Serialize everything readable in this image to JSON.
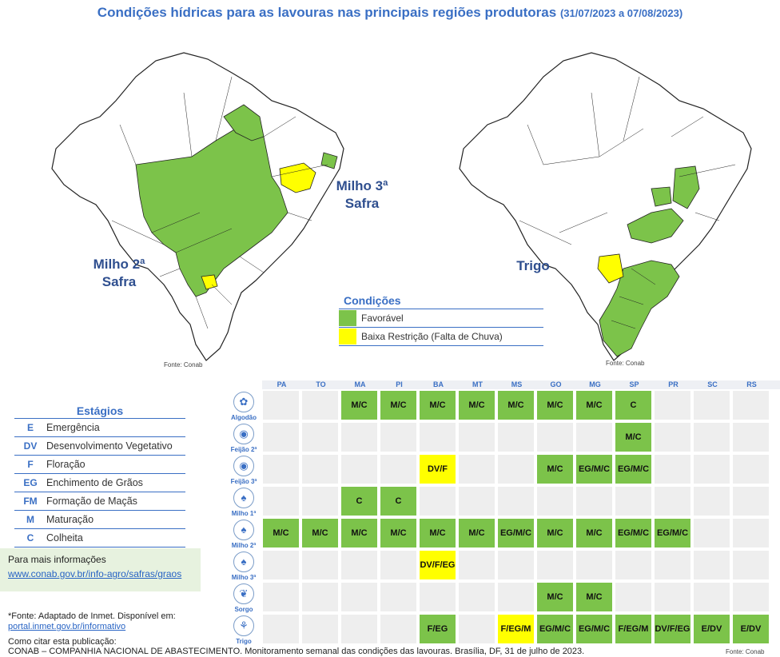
{
  "title": {
    "main": "Condições hídricas para as lavouras nas principais regiões produtoras",
    "period": "(31/07/2023 a 07/08/2023)"
  },
  "maps": {
    "left": {
      "label_line1": "Milho 2ª",
      "label_line2": "Safra",
      "source": "Fonte: Conab",
      "callout_line1": "Milho 3ª",
      "callout_line2": "Safra"
    },
    "right": {
      "label": "Trigo",
      "source": "Fonte: Conab"
    }
  },
  "conditions": {
    "title": "Condições",
    "items": [
      {
        "label": "Favorável",
        "color": "#7cc34a"
      },
      {
        "label": "Baixa Restrição (Falta de Chuva)",
        "color": "#ffff00"
      }
    ]
  },
  "stages": {
    "title": "Estágios",
    "items": [
      {
        "code": "E",
        "name": "Emergência"
      },
      {
        "code": "DV",
        "name": "Desenvolvimento Vegetativo"
      },
      {
        "code": "F",
        "name": "Floração"
      },
      {
        "code": "EG",
        "name": "Enchimento de Grãos"
      },
      {
        "code": "FM",
        "name": "Formação de Maçãs"
      },
      {
        "code": "M",
        "name": "Maturação"
      },
      {
        "code": "C",
        "name": "Colheita"
      }
    ]
  },
  "info": {
    "title": "Para mais informações",
    "link": "www.conab.gov.br/info-agro/safras/graos"
  },
  "footnote": {
    "line1": "*Fonte: Adaptado de Inmet. Disponível em:",
    "link": "portal.inmet.gov.br/informativo",
    "cite_label": "Como citar esta publicação:",
    "citation": "CONAB – COMPANHIA NACIONAL DE ABASTECIMENTO. Monitoramento semanal das condições das lavouras. Brasília, DF, 31 de julho de 2023.",
    "fonte_conab": "Fonte: Conab"
  },
  "grid": {
    "states": [
      "PA",
      "TO",
      "MA",
      "PI",
      "BA",
      "MT",
      "MS",
      "GO",
      "MG",
      "SP",
      "PR",
      "SC",
      "RS"
    ],
    "crops": [
      {
        "name": "Algodão",
        "icon": "cotton-icon",
        "glyph": "✿",
        "cells": [
          "",
          "",
          "M/C",
          "M/C",
          "M/C",
          "M/C",
          "M/C",
          "M/C",
          "M/C",
          "C",
          "",
          "",
          ""
        ],
        "colors": [
          "",
          "",
          "g",
          "g",
          "g",
          "g",
          "g",
          "g",
          "g",
          "g",
          "",
          "",
          ""
        ]
      },
      {
        "name": "Feijão 2ª",
        "icon": "bean-icon",
        "glyph": "◉",
        "cells": [
          "",
          "",
          "",
          "",
          "",
          "",
          "",
          "",
          "",
          "M/C",
          "",
          "",
          ""
        ],
        "colors": [
          "",
          "",
          "",
          "",
          "",
          "",
          "",
          "",
          "",
          "g",
          "",
          "",
          ""
        ]
      },
      {
        "name": "Feijão 3ª",
        "icon": "bean-icon",
        "glyph": "◉",
        "cells": [
          "",
          "",
          "",
          "",
          "DV/F",
          "",
          "",
          "M/C",
          "EG/M/C",
          "EG/M/C",
          "",
          "",
          ""
        ],
        "colors": [
          "",
          "",
          "",
          "",
          "y",
          "",
          "",
          "g",
          "g",
          "g",
          "",
          "",
          ""
        ]
      },
      {
        "name": "Milho 1ª",
        "icon": "corn-icon",
        "glyph": "♠",
        "cells": [
          "",
          "",
          "C",
          "C",
          "",
          "",
          "",
          "",
          "",
          "",
          "",
          "",
          ""
        ],
        "colors": [
          "",
          "",
          "g",
          "g",
          "",
          "",
          "",
          "",
          "",
          "",
          "",
          "",
          ""
        ]
      },
      {
        "name": "Milho 2ª",
        "icon": "corn-icon",
        "glyph": "♠",
        "cells": [
          "M/C",
          "M/C",
          "M/C",
          "M/C",
          "M/C",
          "M/C",
          "EG/M/C",
          "M/C",
          "M/C",
          "EG/M/C",
          "EG/M/C",
          "",
          ""
        ],
        "colors": [
          "g",
          "g",
          "g",
          "g",
          "g",
          "g",
          "g",
          "g",
          "g",
          "g",
          "g",
          "",
          ""
        ]
      },
      {
        "name": "Milho 3ª",
        "icon": "corn-icon",
        "glyph": "♠",
        "cells": [
          "",
          "",
          "",
          "",
          "DV/F/EG",
          "",
          "",
          "",
          "",
          "",
          "",
          "",
          ""
        ],
        "colors": [
          "",
          "",
          "",
          "",
          "y",
          "",
          "",
          "",
          "",
          "",
          "",
          "",
          ""
        ]
      },
      {
        "name": "Sorgo",
        "icon": "sorghum-icon",
        "glyph": "❦",
        "cells": [
          "",
          "",
          "",
          "",
          "",
          "",
          "",
          "M/C",
          "M/C",
          "",
          "",
          "",
          ""
        ],
        "colors": [
          "",
          "",
          "",
          "",
          "",
          "",
          "",
          "g",
          "g",
          "",
          "",
          "",
          ""
        ]
      },
      {
        "name": "Trigo",
        "icon": "wheat-icon",
        "glyph": "⚘",
        "cells": [
          "",
          "",
          "",
          "",
          "F/EG",
          "",
          "F/EG/M",
          "EG/M/C",
          "EG/M/C",
          "F/EG/M",
          "DV/F/EG",
          "E/DV",
          "E/DV"
        ],
        "colors": [
          "",
          "",
          "",
          "",
          "g",
          "",
          "y",
          "g",
          "g",
          "g",
          "g",
          "g",
          "g"
        ]
      }
    ]
  }
}
